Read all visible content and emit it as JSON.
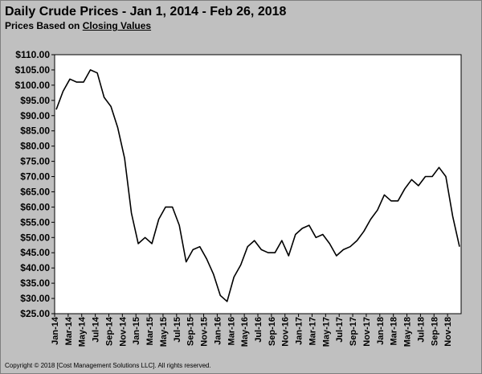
{
  "title": "Daily Crude Prices - Jan 1, 2014 - Feb 26, 2018",
  "subtitle_prefix": "Prices Based on ",
  "subtitle_link": "Closing Values",
  "footer": "Copyright © 2018 [Cost Management Solutions LLC]. All rights reserved.",
  "chart_data": {
    "type": "line",
    "title": "Daily Crude Prices - Jan 1, 2014 - Feb 26, 2018",
    "subtitle": "Prices Based on Closing Values",
    "xlabel": "",
    "ylabel": "",
    "ylim": [
      25,
      110
    ],
    "grid": false,
    "legend": "none",
    "line_color": "#000000",
    "y_tick_labels": [
      "$25.00",
      "$30.00",
      "$35.00",
      "$40.00",
      "$45.00",
      "$50.00",
      "$55.00",
      "$60.00",
      "$65.00",
      "$70.00",
      "$75.00",
      "$80.00",
      "$85.00",
      "$90.00",
      "$95.00",
      "$100.00",
      "$105.00",
      "$110.00"
    ],
    "x_tick_labels": [
      "Jan-14",
      "Mar-14",
      "May-14",
      "Jul-14",
      "Sep-14",
      "Nov-14",
      "Jan-15",
      "Mar-15",
      "May-15",
      "Jul-15",
      "Sep-15",
      "Nov-15",
      "Jan-16",
      "Mar-16",
      "May-16",
      "Jul-16",
      "Sep-16",
      "Nov-16",
      "Jan-17",
      "Mar-17",
      "May-17",
      "Jul-17",
      "Sep-17",
      "Nov-17",
      "Jan-18",
      "Mar-18",
      "May-18",
      "Jul-18",
      "Sep-18",
      "Nov-18"
    ],
    "series": [
      {
        "x": [
          "Jan-14",
          "Feb-14",
          "Mar-14",
          "Apr-14",
          "May-14",
          "Jun-14",
          "Jul-14",
          "Aug-14",
          "Sep-14",
          "Oct-14",
          "Nov-14",
          "Dec-14",
          "Jan-15",
          "Feb-15",
          "Mar-15",
          "Apr-15",
          "May-15",
          "Jun-15",
          "Jul-15",
          "Aug-15",
          "Sep-15",
          "Oct-15",
          "Nov-15",
          "Dec-15",
          "Jan-16",
          "Feb-16",
          "Mar-16",
          "Apr-16",
          "May-16",
          "Jun-16",
          "Jul-16",
          "Aug-16",
          "Sep-16",
          "Oct-16",
          "Nov-16",
          "Dec-16",
          "Jan-17",
          "Feb-17",
          "Mar-17",
          "Apr-17",
          "May-17",
          "Jun-17",
          "Jul-17",
          "Aug-17",
          "Sep-17",
          "Oct-17",
          "Nov-17",
          "Dec-17",
          "Jan-18",
          "Feb-18",
          "Mar-18",
          "Apr-18",
          "May-18",
          "Jun-18",
          "Jul-18",
          "Aug-18",
          "Sep-18",
          "Oct-18",
          "Nov-18",
          "Dec-18"
        ],
        "values": [
          92,
          98,
          102,
          101,
          101,
          105,
          104,
          96,
          93,
          86,
          76,
          58,
          48,
          50,
          48,
          56,
          60,
          60,
          54,
          42,
          46,
          47,
          43,
          38,
          31,
          29,
          37,
          41,
          47,
          49,
          46,
          45,
          45,
          49,
          44,
          51,
          53,
          54,
          50,
          51,
          48,
          44,
          46,
          47,
          49,
          52,
          56,
          59,
          64,
          62,
          62,
          66,
          69,
          67,
          70,
          70,
          73,
          70,
          57,
          47
        ]
      }
    ]
  }
}
